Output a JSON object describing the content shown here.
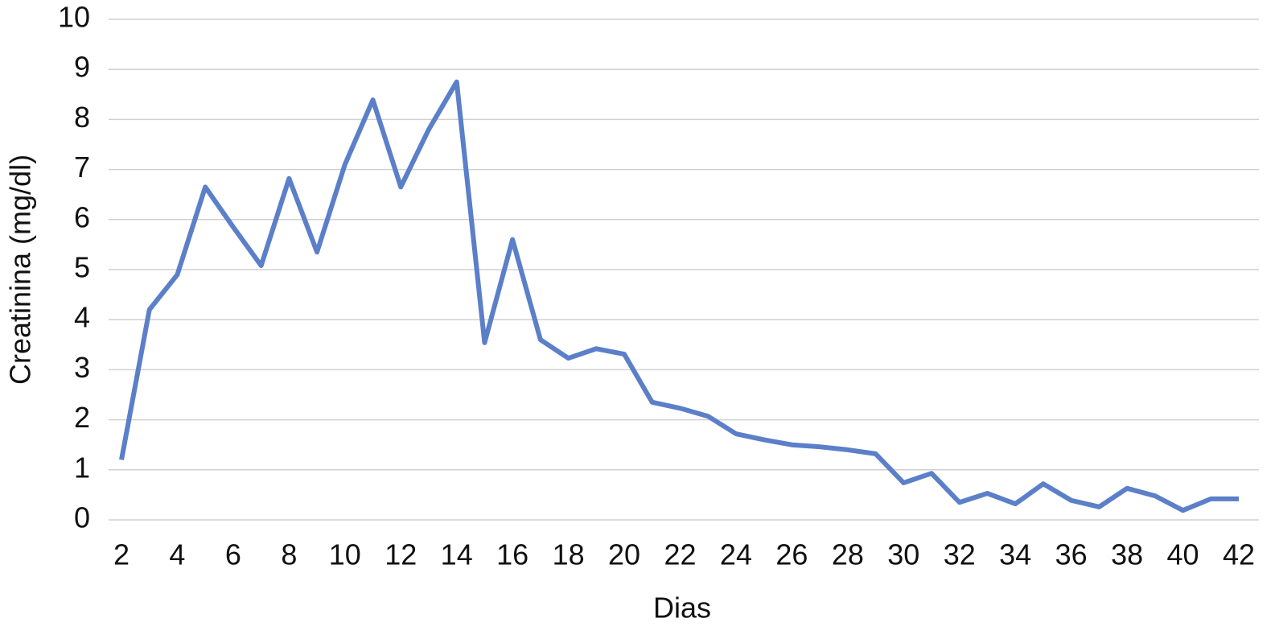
{
  "chart_data": {
    "type": "line",
    "x_label": "Dias",
    "y_label": "Creatinina (mg/dl)",
    "x": [
      2,
      3,
      4,
      5,
      6,
      7,
      8,
      9,
      10,
      11,
      12,
      13,
      14,
      15,
      16,
      17,
      18,
      19,
      20,
      21,
      22,
      23,
      24,
      25,
      26,
      27,
      28,
      29,
      30,
      31,
      32,
      33,
      34,
      35,
      36,
      37,
      38,
      39,
      40,
      41,
      42
    ],
    "series": [
      {
        "color": "#5b7fc8",
        "values": [
          1.2,
          4.2,
          4.9,
          6.65,
          5.85,
          5.08,
          6.82,
          5.35,
          7.1,
          8.39,
          6.65,
          7.8,
          8.75,
          3.54,
          5.6,
          3.6,
          3.23,
          3.42,
          3.31,
          2.35,
          2.23,
          2.07,
          1.72,
          1.6,
          1.5,
          1.46,
          1.4,
          1.32,
          0.74,
          0.93,
          0.35,
          0.53,
          0.32,
          0.72,
          0.39,
          0.26,
          0.63,
          0.48,
          0.19,
          0.42,
          0.42
        ]
      }
    ],
    "xlim": [
      2,
      42
    ],
    "xticks": [
      2,
      4,
      6,
      8,
      10,
      12,
      14,
      16,
      18,
      20,
      22,
      24,
      26,
      28,
      30,
      32,
      34,
      36,
      38,
      40,
      42
    ],
    "ylim": [
      0,
      10
    ],
    "yticks": [
      0,
      1,
      2,
      3,
      4,
      5,
      6,
      7,
      8,
      9,
      10
    ],
    "grid": true
  }
}
